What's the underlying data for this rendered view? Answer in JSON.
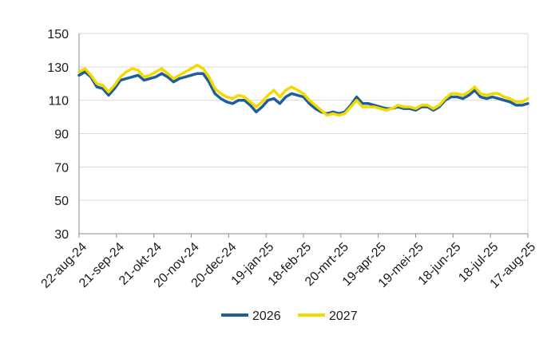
{
  "chart_data": {
    "type": "line",
    "title": "",
    "xlabel": "",
    "ylabel": "",
    "ylim": [
      30,
      150
    ],
    "yticks": [
      30,
      50,
      70,
      90,
      110,
      130,
      150
    ],
    "grid": "horizontal",
    "legend_position": "bottom-center",
    "categories": [
      "22-aug-24",
      "21-sep-24",
      "21-okt-24",
      "20-nov-24",
      "20-dec-24",
      "19-jan-25",
      "18-feb-25",
      "20-mrt-25",
      "19-apr-25",
      "19-mei-25",
      "18-jun-25",
      "18-jul-25",
      "17-aug-25"
    ],
    "series": [
      {
        "name": "2026",
        "color": "#1f5f99",
        "values": [
          [
            0,
            125
          ],
          [
            3,
            127
          ],
          [
            6,
            124
          ],
          [
            9,
            118
          ],
          [
            12,
            117
          ],
          [
            15,
            113
          ],
          [
            18,
            117
          ],
          [
            21,
            122
          ],
          [
            24,
            123
          ],
          [
            27,
            124
          ],
          [
            30,
            125
          ],
          [
            33,
            122
          ],
          [
            36,
            123
          ],
          [
            39,
            124
          ],
          [
            42,
            126
          ],
          [
            45,
            124
          ],
          [
            48,
            121
          ],
          [
            51,
            123
          ],
          [
            54,
            124
          ],
          [
            57,
            125
          ],
          [
            60,
            126
          ],
          [
            63,
            126
          ],
          [
            66,
            121
          ],
          [
            69,
            114
          ],
          [
            72,
            111
          ],
          [
            75,
            109
          ],
          [
            78,
            108
          ],
          [
            81,
            110
          ],
          [
            84,
            110
          ],
          [
            87,
            107
          ],
          [
            90,
            103
          ],
          [
            93,
            106
          ],
          [
            96,
            110
          ],
          [
            99,
            111
          ],
          [
            102,
            108
          ],
          [
            105,
            112
          ],
          [
            108,
            114
          ],
          [
            111,
            113
          ],
          [
            114,
            112
          ],
          [
            117,
            108
          ],
          [
            120,
            105
          ],
          [
            123,
            103
          ],
          [
            126,
            102
          ],
          [
            129,
            103
          ],
          [
            132,
            102
          ],
          [
            135,
            103
          ],
          [
            138,
            107
          ],
          [
            141,
            112
          ],
          [
            144,
            108
          ],
          [
            147,
            108
          ],
          [
            150,
            107
          ],
          [
            153,
            106
          ],
          [
            156,
            105
          ],
          [
            159,
            105
          ],
          [
            162,
            106
          ],
          [
            165,
            105
          ],
          [
            168,
            105
          ],
          [
            171,
            104
          ],
          [
            174,
            106
          ],
          [
            177,
            106
          ],
          [
            180,
            104
          ],
          [
            183,
            106
          ],
          [
            186,
            110
          ],
          [
            189,
            112
          ],
          [
            192,
            112
          ],
          [
            195,
            111
          ],
          [
            198,
            113
          ],
          [
            201,
            116
          ],
          [
            204,
            112
          ],
          [
            207,
            111
          ],
          [
            210,
            112
          ],
          [
            213,
            111
          ],
          [
            216,
            110
          ],
          [
            219,
            109
          ],
          [
            222,
            107
          ],
          [
            225,
            107
          ],
          [
            228,
            108
          ]
        ]
      },
      {
        "name": "2027",
        "color": "#f5d800",
        "values": [
          [
            0,
            127
          ],
          [
            3,
            129
          ],
          [
            6,
            125
          ],
          [
            9,
            120
          ],
          [
            12,
            119
          ],
          [
            15,
            115
          ],
          [
            18,
            119
          ],
          [
            21,
            124
          ],
          [
            24,
            127
          ],
          [
            27,
            129
          ],
          [
            30,
            128
          ],
          [
            33,
            124
          ],
          [
            36,
            125
          ],
          [
            39,
            127
          ],
          [
            42,
            129
          ],
          [
            45,
            126
          ],
          [
            48,
            123
          ],
          [
            51,
            125
          ],
          [
            54,
            127
          ],
          [
            57,
            129
          ],
          [
            60,
            131
          ],
          [
            63,
            129
          ],
          [
            66,
            124
          ],
          [
            69,
            117
          ],
          [
            72,
            114
          ],
          [
            75,
            112
          ],
          [
            78,
            111
          ],
          [
            81,
            113
          ],
          [
            84,
            112
          ],
          [
            87,
            109
          ],
          [
            90,
            106
          ],
          [
            93,
            109
          ],
          [
            96,
            113
          ],
          [
            99,
            116
          ],
          [
            102,
            112
          ],
          [
            105,
            116
          ],
          [
            108,
            118
          ],
          [
            111,
            116
          ],
          [
            114,
            114
          ],
          [
            117,
            110
          ],
          [
            120,
            107
          ],
          [
            123,
            104
          ],
          [
            126,
            101
          ],
          [
            129,
            102
          ],
          [
            132,
            101
          ],
          [
            135,
            102
          ],
          [
            138,
            106
          ],
          [
            141,
            110
          ],
          [
            144,
            106
          ],
          [
            147,
            106
          ],
          [
            150,
            106
          ],
          [
            153,
            105
          ],
          [
            156,
            104
          ],
          [
            159,
            105
          ],
          [
            162,
            107
          ],
          [
            165,
            106
          ],
          [
            168,
            106
          ],
          [
            171,
            105
          ],
          [
            174,
            107
          ],
          [
            177,
            107
          ],
          [
            180,
            105
          ],
          [
            183,
            107
          ],
          [
            186,
            111
          ],
          [
            189,
            114
          ],
          [
            192,
            114
          ],
          [
            195,
            113
          ],
          [
            198,
            115
          ],
          [
            201,
            118
          ],
          [
            204,
            114
          ],
          [
            207,
            113
          ],
          [
            210,
            114
          ],
          [
            213,
            114
          ],
          [
            216,
            112
          ],
          [
            219,
            111
          ],
          [
            222,
            109
          ],
          [
            225,
            109
          ],
          [
            228,
            111
          ]
        ]
      }
    ]
  }
}
